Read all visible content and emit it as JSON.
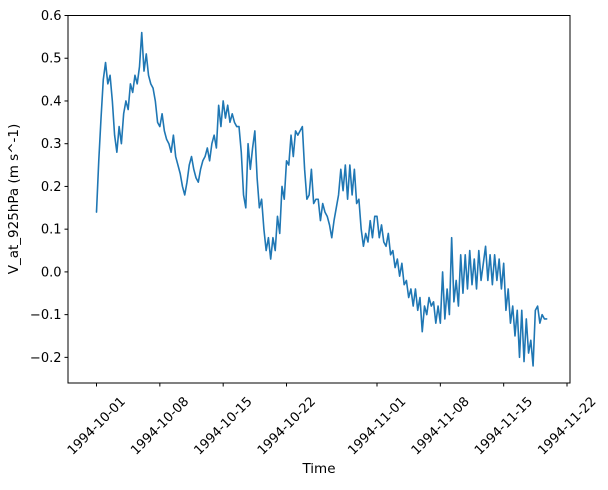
{
  "chart_data": {
    "type": "line",
    "title": "",
    "xlabel": "Time",
    "ylabel": "V_at_925hPa (m s^-1)",
    "line_color": "#1f77b4",
    "line_width": 1.6,
    "grid": false,
    "legend": "none",
    "x_axis_kind": "date",
    "xlim_days_from_1994_10_01": [
      -3.15,
      52.33
    ],
    "ylim": [
      -0.26,
      0.6
    ],
    "x_ticks": [
      {
        "day": 0,
        "label": "1994-10-01"
      },
      {
        "day": 7,
        "label": "1994-10-08"
      },
      {
        "day": 14,
        "label": "1994-10-15"
      },
      {
        "day": 21,
        "label": "1994-10-22"
      },
      {
        "day": 31,
        "label": "1994-11-01"
      },
      {
        "day": 38,
        "label": "1994-11-08"
      },
      {
        "day": 45,
        "label": "1994-11-15"
      },
      {
        "day": 52,
        "label": "1994-11-22"
      }
    ],
    "y_ticks": {
      "values": [
        -0.2,
        -0.1,
        0.0,
        0.1,
        0.2,
        0.3,
        0.4,
        0.5,
        0.6
      ],
      "labels": [
        "−0.2",
        "−0.1",
        "0.0",
        "0.1",
        "0.2",
        "0.3",
        "0.4",
        "0.5",
        "0.6"
      ]
    },
    "series": [
      {
        "name": "V_at_925hPa",
        "start": "1994-10-01 00:00",
        "step_hours": 6,
        "start_day": 0,
        "step_days": 0.25,
        "values": [
          0.14,
          0.26,
          0.36,
          0.45,
          0.49,
          0.44,
          0.46,
          0.4,
          0.32,
          0.28,
          0.34,
          0.3,
          0.37,
          0.4,
          0.38,
          0.44,
          0.42,
          0.46,
          0.44,
          0.48,
          0.56,
          0.47,
          0.51,
          0.46,
          0.44,
          0.43,
          0.4,
          0.35,
          0.34,
          0.37,
          0.33,
          0.31,
          0.3,
          0.28,
          0.32,
          0.27,
          0.25,
          0.23,
          0.2,
          0.18,
          0.21,
          0.25,
          0.27,
          0.24,
          0.22,
          0.21,
          0.24,
          0.26,
          0.27,
          0.29,
          0.26,
          0.3,
          0.32,
          0.29,
          0.39,
          0.34,
          0.4,
          0.36,
          0.39,
          0.35,
          0.37,
          0.35,
          0.34,
          0.34,
          0.28,
          0.18,
          0.15,
          0.3,
          0.24,
          0.29,
          0.33,
          0.22,
          0.15,
          0.17,
          0.1,
          0.05,
          0.08,
          0.03,
          0.08,
          0.05,
          0.13,
          0.09,
          0.2,
          0.17,
          0.26,
          0.25,
          0.32,
          0.27,
          0.33,
          0.32,
          0.33,
          0.34,
          0.24,
          0.17,
          0.18,
          0.24,
          0.16,
          0.17,
          0.17,
          0.12,
          0.16,
          0.14,
          0.13,
          0.11,
          0.08,
          0.12,
          0.15,
          0.18,
          0.24,
          0.19,
          0.25,
          0.17,
          0.25,
          0.18,
          0.24,
          0.16,
          0.17,
          0.1,
          0.06,
          0.09,
          0.07,
          0.12,
          0.08,
          0.13,
          0.13,
          0.08,
          0.11,
          0.07,
          0.06,
          0.09,
          0.04,
          0.05,
          0.01,
          0.03,
          -0.01,
          0.02,
          -0.03,
          -0.02,
          -0.06,
          -0.04,
          -0.08,
          -0.04,
          -0.09,
          -0.06,
          -0.14,
          -0.08,
          -0.1,
          -0.06,
          -0.08,
          -0.07,
          -0.12,
          -0.08,
          -0.12,
          0.0,
          -0.11,
          -0.04,
          -0.1,
          0.08,
          -0.07,
          -0.02,
          -0.08,
          0.04,
          -0.05,
          0.04,
          -0.04,
          0.05,
          -0.03,
          0.03,
          -0.04,
          0.05,
          -0.02,
          0.02,
          0.06,
          -0.02,
          0.04,
          -0.03,
          0.04,
          -0.02,
          0.03,
          -0.04,
          0.02,
          -0.09,
          -0.04,
          -0.12,
          -0.08,
          -0.15,
          -0.09,
          -0.2,
          -0.09,
          -0.21,
          -0.11,
          -0.19,
          -0.16,
          -0.22,
          -0.09,
          -0.08,
          -0.12,
          -0.1,
          -0.11,
          -0.11
        ]
      }
    ]
  }
}
